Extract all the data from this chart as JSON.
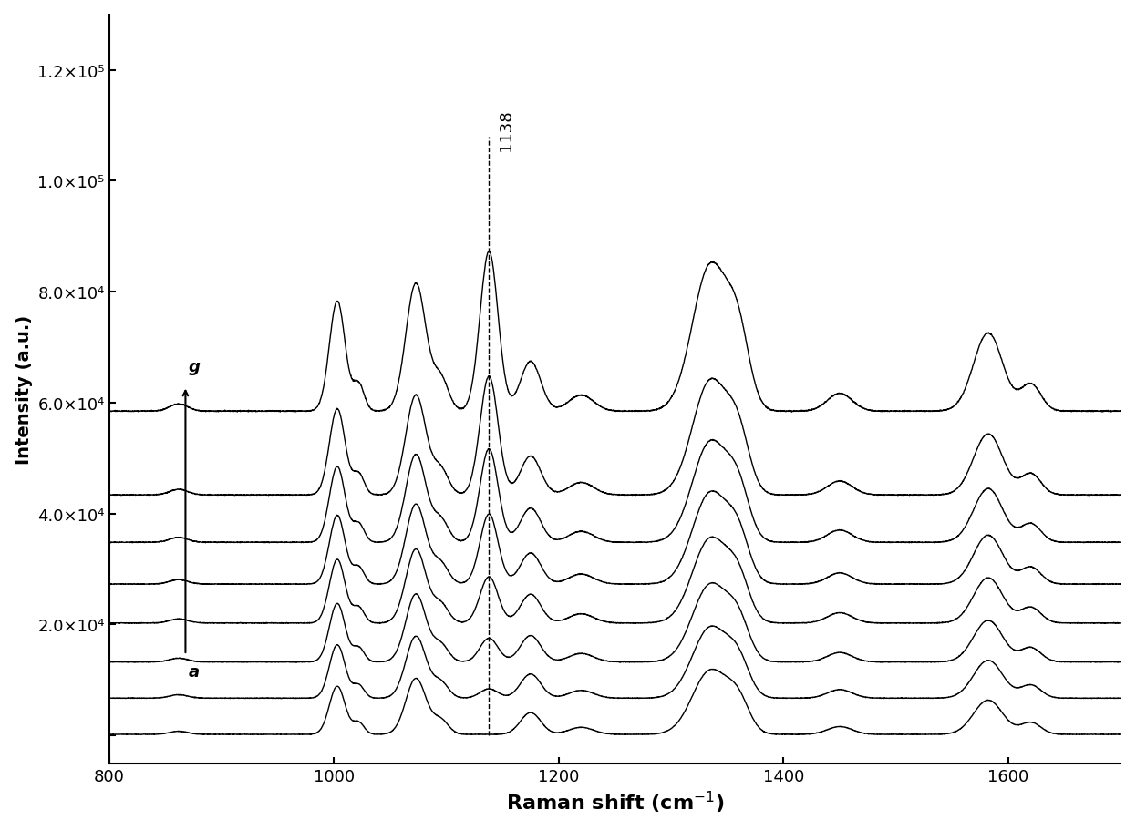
{
  "x_min": 800,
  "x_max": 1700,
  "y_min": -5000,
  "y_max": 130000,
  "xlabel": "Raman shift (cm$^{-1}$)",
  "ylabel": "Intensity (a.u.)",
  "yticks": [
    0,
    20000,
    40000,
    60000,
    80000,
    100000,
    120000
  ],
  "ytick_labels": [
    "",
    "2.0×10⁴",
    "4.0×10⁴",
    "6.0×10⁴",
    "8.0×10⁴",
    "1.0×10⁵",
    "1.2×10⁵"
  ],
  "dashed_line_x": 1138,
  "annotation_text": "1138",
  "label_g": "g",
  "label_a": "a",
  "n_spectra": 8,
  "background_color": "#ffffff",
  "line_color": "#000000"
}
